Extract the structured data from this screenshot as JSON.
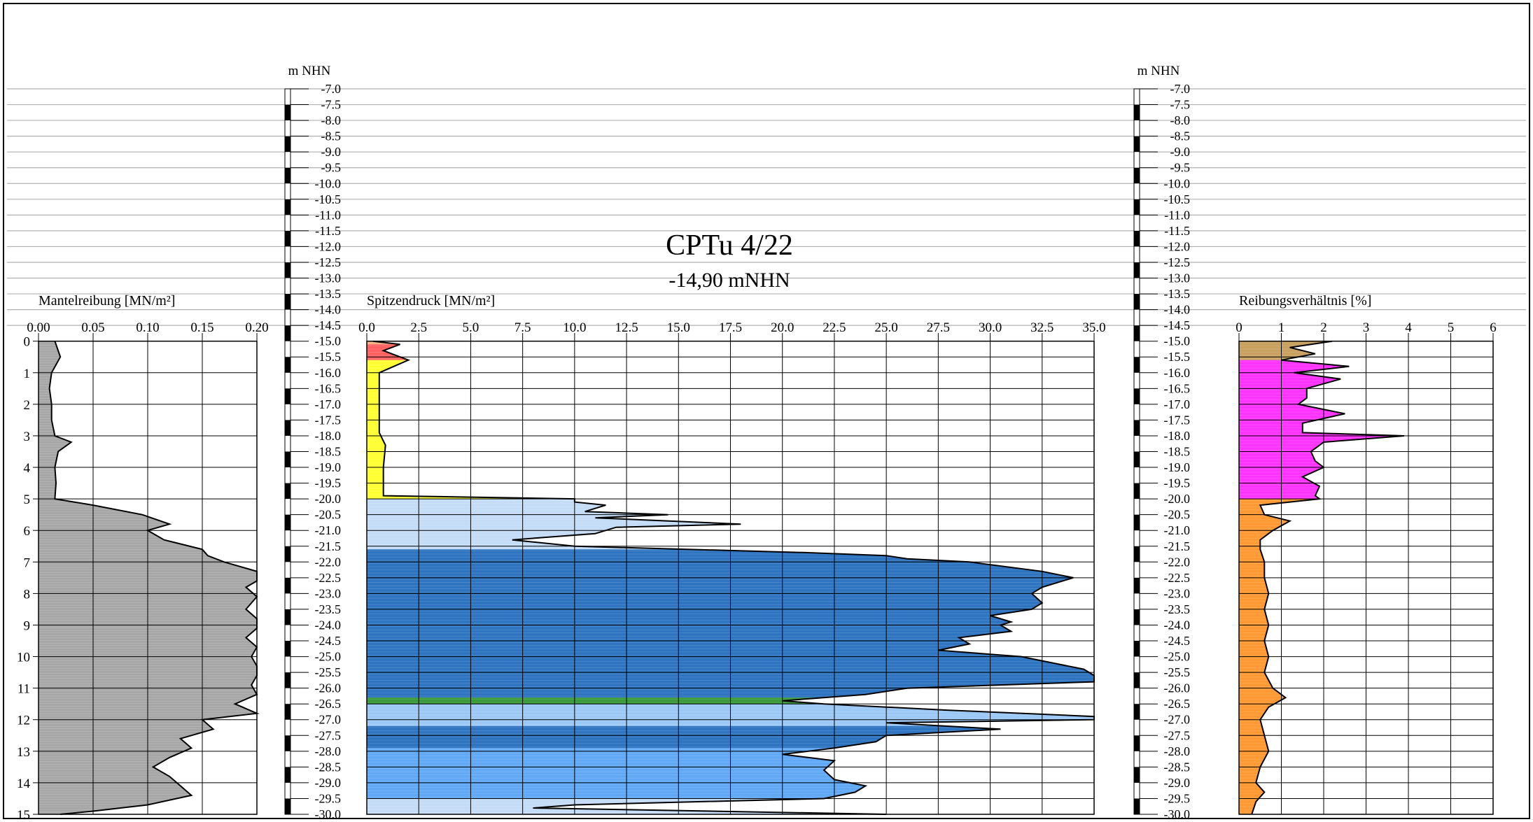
{
  "header": {
    "title": "CPTu 4/22",
    "subtitle": "-14,90 mNHN"
  },
  "elevation_axis": {
    "label": "m NHN",
    "min": -30.0,
    "max": -7.0,
    "step": 0.5
  },
  "chart_data": [
    {
      "type": "area",
      "title": "Mantelreibung [MN/m²]",
      "xlabel": "Mantelreibung [MN/m²]",
      "ylabel": "",
      "xlim": [
        0,
        0.2
      ],
      "xticks": [
        "0.00",
        "0.05",
        "0.10",
        "0.15",
        "0.20"
      ],
      "ylim": [
        0,
        15
      ],
      "yticks": [
        "0",
        "1",
        "2",
        "3",
        "4",
        "5",
        "6",
        "7",
        "8",
        "9",
        "10",
        "11",
        "12",
        "13",
        "14",
        "15"
      ],
      "fill_color": "#a6a6a6",
      "series": [
        {
          "depth": [
            0,
            0.5,
            1,
            1.5,
            2,
            2.5,
            3,
            3.2,
            3.5,
            4,
            4.5,
            5,
            5.2,
            5.5,
            5.8,
            6,
            6.3,
            6.6,
            6.8,
            7,
            7.3,
            7.6,
            7.8,
            8.1,
            8.5,
            8.8,
            9.1,
            9.4,
            9.7,
            10,
            10.3,
            10.6,
            10.9,
            11.2,
            11.5,
            11.8,
            12,
            12.3,
            12.6,
            12.9,
            13.2,
            13.5,
            13.8,
            14.1,
            14.4,
            14.7,
            14.9,
            15
          ],
          "values": [
            0.015,
            0.02,
            0.012,
            0.01,
            0.012,
            0.012,
            0.015,
            0.03,
            0.018,
            0.015,
            0.016,
            0.015,
            0.05,
            0.095,
            0.12,
            0.1,
            0.115,
            0.15,
            0.155,
            0.17,
            0.2,
            0.2,
            0.19,
            0.2,
            0.19,
            0.2,
            0.2,
            0.19,
            0.2,
            0.195,
            0.2,
            0.2,
            0.195,
            0.2,
            0.18,
            0.2,
            0.15,
            0.16,
            0.13,
            0.14,
            0.12,
            0.105,
            0.12,
            0.13,
            0.14,
            0.1,
            0.05,
            0.02
          ]
        }
      ]
    },
    {
      "type": "area",
      "title": "Spitzendruck [MN/m²]",
      "xlabel": "Spitzendruck [MN/m²]",
      "ylabel": "m NHN",
      "xlim": [
        0,
        35
      ],
      "xticks": [
        "0.0",
        "2.5",
        "5.0",
        "7.5",
        "10.0",
        "12.5",
        "15.0",
        "17.5",
        "20.0",
        "22.5",
        "25.0",
        "27.5",
        "30.0",
        "32.5",
        "35.0"
      ],
      "ylim": [
        -30,
        -15
      ],
      "layers": [
        {
          "from": -15.0,
          "to": -15.1,
          "color": "#f4b183"
        },
        {
          "from": -15.1,
          "to": -15.6,
          "color": "#ff6060"
        },
        {
          "from": -15.6,
          "to": -20.0,
          "color": "#ffff33"
        },
        {
          "from": -20.0,
          "to": -21.6,
          "color": "#c5dcf7"
        },
        {
          "from": -21.6,
          "to": -26.3,
          "color": "#2e74c0"
        },
        {
          "from": -26.3,
          "to": -26.5,
          "color": "#3a9a3a"
        },
        {
          "from": -26.5,
          "to": -27.2,
          "color": "#9cc8f5"
        },
        {
          "from": -27.2,
          "to": -27.9,
          "color": "#2e74c0"
        },
        {
          "from": -27.9,
          "to": -29.5,
          "color": "#61a8f5"
        },
        {
          "from": -29.5,
          "to": -30.0,
          "color": "#c5dcf7"
        }
      ],
      "series": [
        {
          "elev": [
            -15,
            -15.1,
            -15.3,
            -15.6,
            -16,
            -17,
            -17.9,
            -18.3,
            -19,
            -19.9,
            -20.0,
            -20.1,
            -20.2,
            -20.4,
            -20.5,
            -20.6,
            -20.8,
            -20.9,
            -21.1,
            -21.3,
            -21.5,
            -21.7,
            -21.8,
            -21.9,
            -22,
            -22.3,
            -22.5,
            -22.8,
            -23,
            -23.3,
            -23.5,
            -23.7,
            -23.9,
            -24,
            -24.2,
            -24.4,
            -24.6,
            -24.8,
            -25,
            -25.2,
            -25.4,
            -25.6,
            -25.8,
            -26.0,
            -26.2,
            -26.4,
            -26.5,
            -26.7,
            -26.9,
            -27.0,
            -27.1,
            -27.3,
            -27.5,
            -27.7,
            -27.9,
            -28.1,
            -28.3,
            -28.6,
            -28.9,
            -29.1,
            -29.3,
            -29.5,
            -29.7,
            -29.8,
            -30
          ],
          "values": [
            0.3,
            1.6,
            0.8,
            2.0,
            0.6,
            0.6,
            0.6,
            0.9,
            0.8,
            0.8,
            10.0,
            10.0,
            11.5,
            10.5,
            14.5,
            11.0,
            18.0,
            12.0,
            11.0,
            7.0,
            10.0,
            21.0,
            25.0,
            26.0,
            29.0,
            32.5,
            34.0,
            32.5,
            32.0,
            32.5,
            32.0,
            30.0,
            31.0,
            30.5,
            31.0,
            28.5,
            29.0,
            27.5,
            31.5,
            33.0,
            34.5,
            35.0,
            35.0,
            26.0,
            24.0,
            20.0,
            22.0,
            28.0,
            35.0,
            35.0,
            25.0,
            30.5,
            25.0,
            24.5,
            22.5,
            20.0,
            22.5,
            22.0,
            22.5,
            24.0,
            23.5,
            22.0,
            10.0,
            8.0,
            25.0
          ]
        }
      ]
    },
    {
      "type": "area",
      "title": "Reibungsverhältnis [%]",
      "xlabel": "Reibungsverhältnis [%]",
      "ylabel": "m NHN",
      "xlim": [
        0,
        6
      ],
      "xticks": [
        "0",
        "1",
        "2",
        "3",
        "4",
        "5",
        "6"
      ],
      "ylim": [
        -30,
        -15
      ],
      "layers": [
        {
          "from": -15.0,
          "to": -15.6,
          "color": "#c8a060"
        },
        {
          "from": -15.6,
          "to": -20.0,
          "color": "#ff33ff"
        },
        {
          "from": -20.0,
          "to": -30.0,
          "color": "#ff9933"
        }
      ],
      "series": [
        {
          "elev": [
            -15,
            -15.2,
            -15.4,
            -15.6,
            -15.8,
            -16,
            -16.2,
            -16.5,
            -16.8,
            -17,
            -17.3,
            -17.6,
            -17.9,
            -18.0,
            -18.2,
            -18.5,
            -18.8,
            -19.0,
            -19.3,
            -19.6,
            -19.9,
            -20.0,
            -20.2,
            -20.5,
            -20.7,
            -21,
            -21.3,
            -21.6,
            -22,
            -22.5,
            -23,
            -23.5,
            -24,
            -24.5,
            -25,
            -25.5,
            -26,
            -26.3,
            -26.6,
            -27,
            -27.5,
            -28,
            -28.5,
            -29,
            -29.3,
            -29.6,
            -30
          ],
          "values": [
            2.2,
            1.2,
            1.8,
            1.0,
            2.6,
            1.3,
            2.4,
            1.6,
            1.6,
            1.4,
            2.5,
            1.5,
            1.5,
            3.9,
            2.0,
            1.7,
            1.8,
            2.0,
            1.5,
            1.9,
            1.8,
            1.9,
            0.5,
            0.6,
            1.2,
            0.8,
            0.5,
            0.5,
            0.6,
            0.6,
            0.7,
            0.6,
            0.7,
            0.6,
            0.7,
            0.6,
            0.8,
            1.1,
            0.7,
            0.5,
            0.6,
            0.7,
            0.5,
            0.4,
            0.6,
            0.4,
            0.3
          ]
        }
      ]
    }
  ]
}
